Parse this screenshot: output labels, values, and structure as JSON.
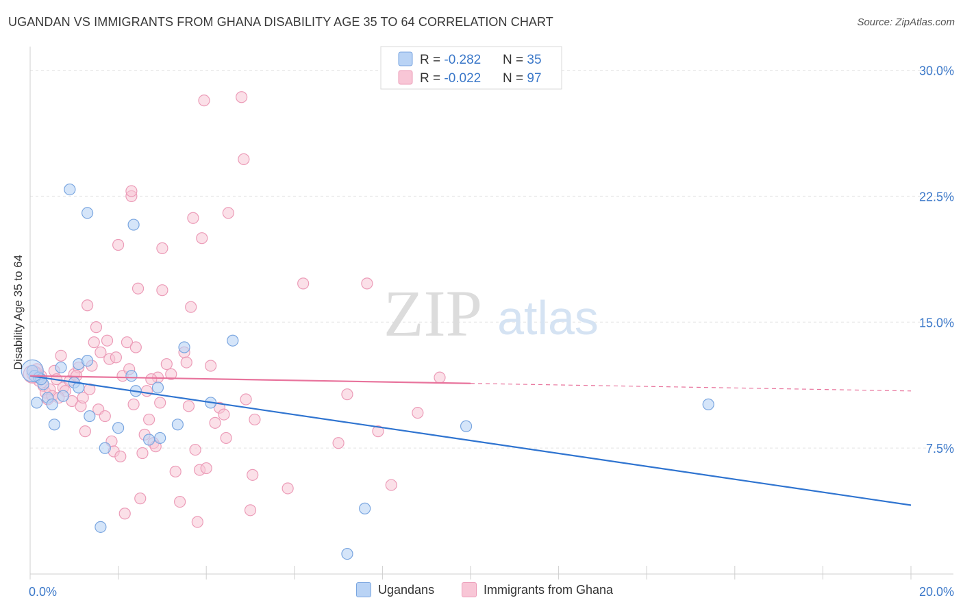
{
  "header": {
    "title": "UGANDAN VS IMMIGRANTS FROM GHANA DISABILITY AGE 35 TO 64 CORRELATION CHART",
    "source": "Source: ZipAtlas.com"
  },
  "watermark": {
    "zip": "ZIP",
    "atlas": "atlas"
  },
  "legend_box": {
    "rows": [
      {
        "r_label": "R = ",
        "r_value": "-0.282",
        "n_label": "N = ",
        "n_value": "35"
      },
      {
        "r_label": "R = ",
        "r_value": "-0.022",
        "n_label": "N = ",
        "n_value": "97"
      }
    ]
  },
  "bottom_legend": {
    "items": [
      "Ugandans",
      "Immigrants from Ghana"
    ]
  },
  "colors": {
    "blue_fill": "#b9d3f5",
    "blue_stroke": "#7aa6e0",
    "blue_line": "#2f74d0",
    "pink_fill": "#f8c6d6",
    "pink_stroke": "#ec9cb8",
    "pink_line": "#e8739c",
    "accent_text": "#3b78c9",
    "grid": "#e3e3e3"
  },
  "chart_data": {
    "type": "scatter",
    "title": "UGANDAN VS IMMIGRANTS FROM GHANA DISABILITY AGE 35 TO 64 CORRELATION CHART",
    "xlabel": "",
    "ylabel": "Disability Age 35 to 64",
    "xlim": [
      0,
      20
    ],
    "ylim": [
      0,
      31
    ],
    "x_ticks": [
      "0.0%",
      "20.0%"
    ],
    "y_ticks": [
      {
        "value": 7.5,
        "label": "7.5%"
      },
      {
        "value": 15.0,
        "label": "15.0%"
      },
      {
        "value": 22.5,
        "label": "22.5%"
      },
      {
        "value": 30.0,
        "label": "30.0%"
      }
    ],
    "grid": true,
    "legend_position": "top-center",
    "series": [
      {
        "name": "Ugandans",
        "r": -0.282,
        "n": 35,
        "trend": {
          "x": [
            0,
            20
          ],
          "y": [
            11.8,
            4.1
          ],
          "dashed_from": null
        },
        "points": [
          [
            0.05,
            12.1
          ],
          [
            0.1,
            11.8
          ],
          [
            0.15,
            10.2
          ],
          [
            0.2,
            11.7
          ],
          [
            0.3,
            11.3
          ],
          [
            0.4,
            10.5
          ],
          [
            0.5,
            10.1
          ],
          [
            0.55,
            8.9
          ],
          [
            0.7,
            12.3
          ],
          [
            0.75,
            10.6
          ],
          [
            0.9,
            22.9
          ],
          [
            1.0,
            11.4
          ],
          [
            1.1,
            12.5
          ],
          [
            1.1,
            11.1
          ],
          [
            1.3,
            12.7
          ],
          [
            1.3,
            21.5
          ],
          [
            1.35,
            9.4
          ],
          [
            1.6,
            2.8
          ],
          [
            1.7,
            7.5
          ],
          [
            2.0,
            8.7
          ],
          [
            2.3,
            11.8
          ],
          [
            2.35,
            20.8
          ],
          [
            2.4,
            10.9
          ],
          [
            2.7,
            8.0
          ],
          [
            2.9,
            11.1
          ],
          [
            2.95,
            8.1
          ],
          [
            3.35,
            8.9
          ],
          [
            3.5,
            13.5
          ],
          [
            4.1,
            10.2
          ],
          [
            4.6,
            13.9
          ],
          [
            7.2,
            1.2
          ],
          [
            7.6,
            3.9
          ],
          [
            9.9,
            8.8
          ],
          [
            15.4,
            10.1
          ],
          [
            0.25,
            11.6
          ]
        ]
      },
      {
        "name": "Immigrants from Ghana",
        "r": -0.022,
        "n": 97,
        "trend": {
          "x": [
            0,
            20
          ],
          "y": [
            11.8,
            10.9
          ],
          "dashed_from": 10.0
        },
        "points": [
          [
            0.05,
            11.9
          ],
          [
            0.1,
            11.7
          ],
          [
            0.15,
            12.0
          ],
          [
            0.2,
            11.5
          ],
          [
            0.25,
            11.8
          ],
          [
            0.3,
            11.2
          ],
          [
            0.35,
            10.8
          ],
          [
            0.4,
            10.4
          ],
          [
            0.45,
            11.0
          ],
          [
            0.5,
            10.6
          ],
          [
            0.55,
            12.1
          ],
          [
            0.6,
            11.6
          ],
          [
            0.7,
            13.0
          ],
          [
            0.75,
            11.1
          ],
          [
            0.8,
            10.9
          ],
          [
            0.9,
            11.5
          ],
          [
            0.95,
            10.3
          ],
          [
            1.0,
            11.9
          ],
          [
            1.1,
            12.3
          ],
          [
            1.15,
            10.0
          ],
          [
            1.2,
            10.5
          ],
          [
            1.25,
            8.5
          ],
          [
            1.3,
            16.0
          ],
          [
            1.35,
            11.0
          ],
          [
            1.4,
            12.4
          ],
          [
            1.45,
            13.8
          ],
          [
            1.5,
            14.7
          ],
          [
            1.55,
            9.8
          ],
          [
            1.6,
            13.2
          ],
          [
            1.7,
            9.4
          ],
          [
            1.75,
            13.9
          ],
          [
            1.8,
            12.8
          ],
          [
            1.85,
            7.9
          ],
          [
            1.9,
            7.3
          ],
          [
            1.95,
            12.9
          ],
          [
            2.0,
            19.6
          ],
          [
            2.05,
            7.0
          ],
          [
            2.1,
            11.8
          ],
          [
            2.15,
            3.6
          ],
          [
            2.2,
            13.8
          ],
          [
            2.25,
            12.2
          ],
          [
            2.3,
            22.5
          ],
          [
            2.3,
            22.8
          ],
          [
            2.35,
            10.1
          ],
          [
            2.4,
            13.5
          ],
          [
            2.45,
            17.0
          ],
          [
            2.5,
            4.5
          ],
          [
            2.55,
            7.2
          ],
          [
            2.6,
            8.3
          ],
          [
            2.65,
            10.9
          ],
          [
            2.7,
            9.2
          ],
          [
            2.8,
            7.8
          ],
          [
            2.85,
            7.6
          ],
          [
            2.9,
            11.7
          ],
          [
            2.95,
            10.2
          ],
          [
            3.0,
            19.4
          ],
          [
            3.0,
            16.9
          ],
          [
            3.1,
            12.5
          ],
          [
            3.2,
            11.9
          ],
          [
            3.3,
            6.1
          ],
          [
            3.4,
            4.3
          ],
          [
            3.5,
            13.2
          ],
          [
            3.55,
            12.6
          ],
          [
            3.6,
            10.0
          ],
          [
            3.65,
            15.9
          ],
          [
            3.7,
            21.2
          ],
          [
            3.75,
            7.4
          ],
          [
            3.8,
            3.1
          ],
          [
            3.85,
            6.2
          ],
          [
            3.9,
            20.0
          ],
          [
            3.95,
            28.2
          ],
          [
            4.0,
            6.3
          ],
          [
            4.1,
            12.4
          ],
          [
            4.2,
            9.0
          ],
          [
            4.3,
            9.9
          ],
          [
            4.4,
            9.5
          ],
          [
            4.45,
            8.1
          ],
          [
            4.5,
            21.5
          ],
          [
            4.8,
            28.4
          ],
          [
            4.85,
            24.7
          ],
          [
            4.9,
            10.4
          ],
          [
            5.0,
            3.8
          ],
          [
            5.05,
            5.9
          ],
          [
            5.1,
            9.2
          ],
          [
            5.85,
            5.1
          ],
          [
            6.2,
            17.3
          ],
          [
            7.0,
            7.8
          ],
          [
            7.2,
            10.7
          ],
          [
            7.65,
            17.3
          ],
          [
            7.9,
            8.5
          ],
          [
            8.2,
            5.3
          ],
          [
            8.8,
            9.6
          ],
          [
            9.3,
            11.7
          ],
          [
            0.15,
            12.2
          ],
          [
            0.65,
            10.5
          ],
          [
            1.05,
            11.8
          ],
          [
            2.75,
            11.6
          ]
        ]
      }
    ]
  }
}
